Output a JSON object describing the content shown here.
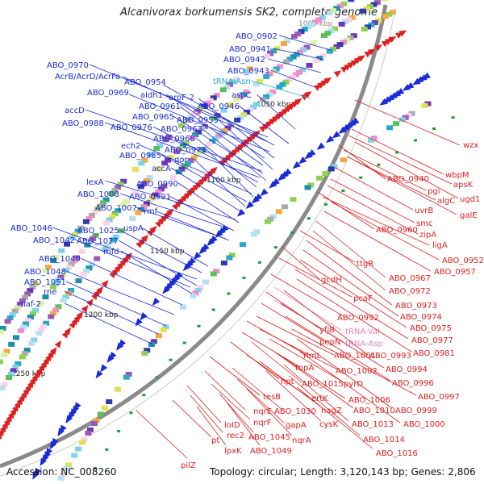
{
  "title": "Alcanivorax borkumensis SK2, complete genome",
  "accession": "Accession: NC_008260",
  "summary": "Topology: circular; Length: 3,120,143 bp; Genes: 2,806",
  "colors": {
    "forward": "#1a2bd8",
    "reverse": "#e02020",
    "rna": "#22b5c8",
    "rna_rev": "#e089c0",
    "backbone": "#8a8a8a",
    "tick": "#1aa030"
  },
  "kbp_labels": [
    "1000 kbp",
    "1050 kbp",
    "1100 kbp",
    "1150 kbp",
    "1200 kbp",
    "1250 kbp"
  ],
  "forward_labels": [
    "ABO_0902",
    "ABO_0941",
    "ABO_0942",
    "ABO_0943",
    "tRNA-Asn",
    "aspC",
    "ABO_0946",
    "ABO_0970",
    "AcrB/AcrD/AcrFa",
    "ABO_0954",
    "ABO_0969",
    "aldh1",
    "aroF-2",
    "ABO_0961",
    "accD",
    "ABO_0965",
    "ABO_0955",
    "ABO_0988",
    "ABO_0976",
    "ABO_0963",
    "ABO_0968",
    "ech2",
    "ABO_0971",
    "ABO_0985",
    "qor",
    "accA",
    "lexA",
    "ABO_0990",
    "ABO_1008",
    "ABO_0991",
    "ABO_1007",
    "rmf",
    "ABO_1046",
    "ABO_1025",
    "uspA",
    "ABO_1042",
    "ABO_1027",
    "mfd",
    "ABO_1040",
    "ABO_1048",
    "ABO_1051",
    "rne",
    "maf-2"
  ],
  "reverse_labels": [
    "wzx",
    "ABO_0940",
    "wbpM",
    "apsK",
    "pgi",
    "ugd1",
    "algC",
    "uvrB",
    "galE",
    "smc",
    "zipA",
    "ABO_0960",
    "ligA",
    "ABO_0952",
    "ttgR",
    "ABO_0957",
    "ABO_0967",
    "gcdH",
    "ABO_0972",
    "pcaF",
    "ABO_0973",
    "ABO_0992",
    "ABO_0974",
    "yfjB",
    "tRNA-Val",
    "ABO_0975",
    "pepN",
    "tRNA-Asp",
    "ABO_0977",
    "rlmL",
    "ABO_1001",
    "ABO_0993",
    "ABO_0981",
    "topA",
    "ABO_1002",
    "ABO_0994",
    "hpt",
    "ABO_1015",
    "pyrD",
    "ABO_0996",
    "tesB",
    "ertK",
    "ABO_1006",
    "ABO_0997",
    "nqrE",
    "ABO_1030",
    "nagZ",
    "ABO_1010",
    "ABO_0999",
    "loID",
    "nqrF",
    "gapA",
    "cysK",
    "ABO_1013",
    "ABO_1000",
    "rec2",
    "pt",
    "ABO_1045",
    "nqrA",
    "ABO_1014",
    "lpxK",
    "ABO_1049",
    "ABO_1016",
    "pilZ"
  ]
}
